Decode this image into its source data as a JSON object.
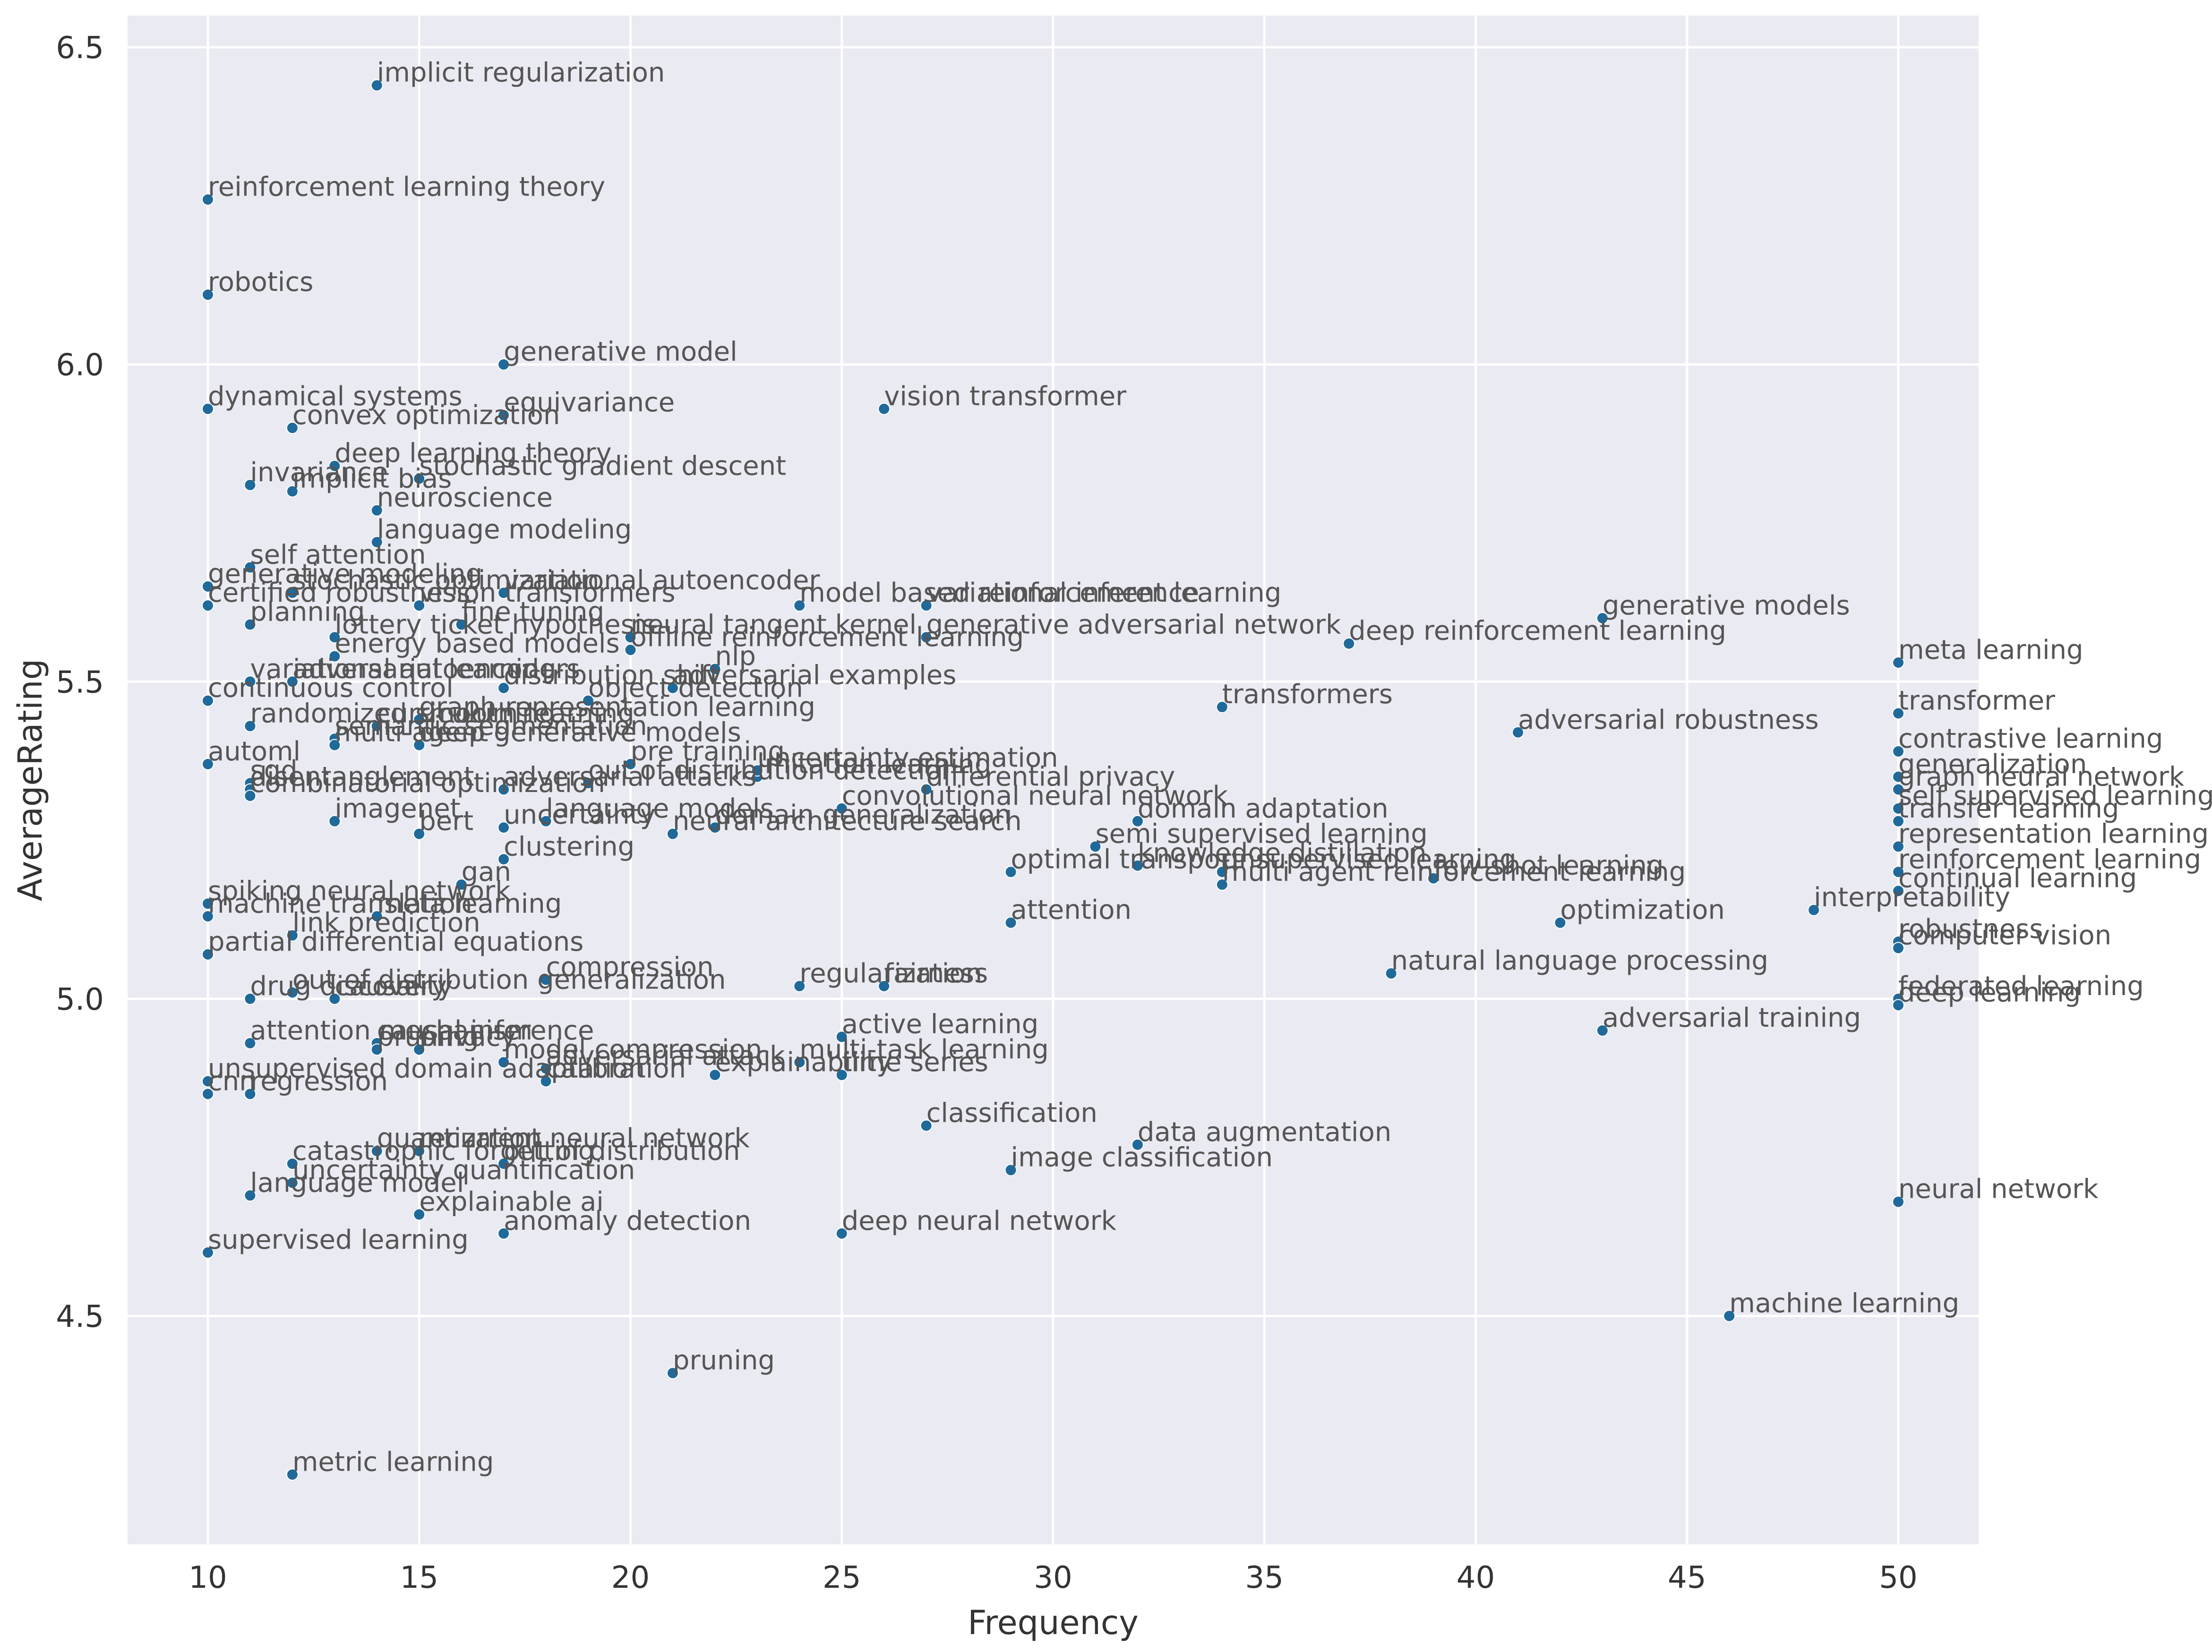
{
  "chart_data": {
    "type": "scatter",
    "xlabel": "Frequency",
    "ylabel": "AverageRating",
    "xlim": [
      8.1,
      51.9
    ],
    "ylim": [
      4.14,
      6.55
    ],
    "x_ticks": [
      10,
      15,
      20,
      25,
      30,
      35,
      40,
      45,
      50
    ],
    "y_ticks": [
      4.5,
      5.0,
      5.5,
      6.0,
      6.5
    ],
    "grid": true,
    "style": {
      "background": "#EAEAF2",
      "grid": "#FFFFFF",
      "point": "#1F6A9A",
      "label": "#555555",
      "tick": "#333333"
    },
    "points": [
      {
        "label": "implicit regularization",
        "x": 14,
        "y": 6.44
      },
      {
        "label": "reinforcement learning theory",
        "x": 10,
        "y": 6.26
      },
      {
        "label": "robotics",
        "x": 10,
        "y": 6.11
      },
      {
        "label": "generative model",
        "x": 17,
        "y": 6.0
      },
      {
        "label": "dynamical systems",
        "x": 10,
        "y": 5.93
      },
      {
        "label": "vision transformer",
        "x": 26,
        "y": 5.93
      },
      {
        "label": "convex optimization",
        "x": 12,
        "y": 5.9
      },
      {
        "label": "equivariance",
        "x": 17,
        "y": 5.92
      },
      {
        "label": "deep learning theory",
        "x": 13,
        "y": 5.84
      },
      {
        "label": "invariance",
        "x": 11,
        "y": 5.81
      },
      {
        "label": "implicit bias",
        "x": 12,
        "y": 5.8
      },
      {
        "label": "stochastic gradient descent",
        "x": 15,
        "y": 5.82
      },
      {
        "label": "neuroscience",
        "x": 14,
        "y": 5.77
      },
      {
        "label": "language modeling",
        "x": 14,
        "y": 5.72
      },
      {
        "label": "self attention",
        "x": 11,
        "y": 5.68
      },
      {
        "label": "generative modeling",
        "x": 10,
        "y": 5.65
      },
      {
        "label": "stochastic optimization",
        "x": 12,
        "y": 5.64
      },
      {
        "label": "variational autoencoder",
        "x": 17,
        "y": 5.64
      },
      {
        "label": "certified robustness",
        "x": 10,
        "y": 5.62
      },
      {
        "label": "vision transformers",
        "x": 15,
        "y": 5.62
      },
      {
        "label": "model based reinforcement learning",
        "x": 24,
        "y": 5.62
      },
      {
        "label": "variational inference",
        "x": 27,
        "y": 5.62
      },
      {
        "label": "generative models",
        "x": 43,
        "y": 5.6
      },
      {
        "label": "planning",
        "x": 11,
        "y": 5.59
      },
      {
        "label": "fine tuning",
        "x": 16,
        "y": 5.59
      },
      {
        "label": "lottery ticket hypothesis",
        "x": 13,
        "y": 5.57
      },
      {
        "label": "neural tangent kernel",
        "x": 20,
        "y": 5.57
      },
      {
        "label": "generative adversarial network",
        "x": 27,
        "y": 5.57
      },
      {
        "label": "deep reinforcement learning",
        "x": 37,
        "y": 5.56
      },
      {
        "label": "offline reinforcement learning",
        "x": 20,
        "y": 5.55
      },
      {
        "label": "energy based models",
        "x": 13,
        "y": 5.54
      },
      {
        "label": "meta learning",
        "x": 50,
        "y": 5.53
      },
      {
        "label": "nlp",
        "x": 22,
        "y": 5.52
      },
      {
        "label": "variational autoencoders",
        "x": 11,
        "y": 5.5
      },
      {
        "label": "adversarial learning",
        "x": 12,
        "y": 5.5
      },
      {
        "label": "distribution shift",
        "x": 17,
        "y": 5.49
      },
      {
        "label": "adversarial examples",
        "x": 21,
        "y": 5.49
      },
      {
        "label": "continuous control",
        "x": 10,
        "y": 5.47
      },
      {
        "label": "object detection",
        "x": 19,
        "y": 5.47
      },
      {
        "label": "transformers",
        "x": 34,
        "y": 5.46
      },
      {
        "label": "transformer",
        "x": 50,
        "y": 5.45
      },
      {
        "label": "graph representation learning",
        "x": 15,
        "y": 5.44
      },
      {
        "label": "randomized smoothing",
        "x": 11,
        "y": 5.43
      },
      {
        "label": "curriculum learning",
        "x": 14,
        "y": 5.43
      },
      {
        "label": "adversarial robustness",
        "x": 41,
        "y": 5.42
      },
      {
        "label": "semantic segmentation",
        "x": 13,
        "y": 5.41
      },
      {
        "label": "multi-agent",
        "x": 13,
        "y": 5.4
      },
      {
        "label": "deep generative models",
        "x": 15,
        "y": 5.4
      },
      {
        "label": "contrastive learning",
        "x": 50,
        "y": 5.39
      },
      {
        "label": "automl",
        "x": 10,
        "y": 5.37
      },
      {
        "label": "pre training",
        "x": 20,
        "y": 5.37
      },
      {
        "label": "imitation learning",
        "x": 23,
        "y": 5.35
      },
      {
        "label": "uncertainty estimation",
        "x": 23,
        "y": 5.36
      },
      {
        "label": "sgd",
        "x": 11,
        "y": 5.34
      },
      {
        "label": "disentanglement",
        "x": 11,
        "y": 5.33
      },
      {
        "label": "out of distribution detection",
        "x": 19,
        "y": 5.34
      },
      {
        "label": "generalization",
        "x": 50,
        "y": 5.35
      },
      {
        "label": "graph neural network",
        "x": 50,
        "y": 5.33
      },
      {
        "label": "combinatorial optimization",
        "x": 11,
        "y": 5.32
      },
      {
        "label": "adversarial attacks",
        "x": 17,
        "y": 5.33
      },
      {
        "label": "differential privacy",
        "x": 27,
        "y": 5.33
      },
      {
        "label": "self supervised learning",
        "x": 50,
        "y": 5.3
      },
      {
        "label": "convolutional neural network",
        "x": 25,
        "y": 5.3
      },
      {
        "label": "imagenet",
        "x": 13,
        "y": 5.28
      },
      {
        "label": "uncertainty",
        "x": 17,
        "y": 5.27
      },
      {
        "label": "language models",
        "x": 18,
        "y": 5.28
      },
      {
        "label": "domain generalization",
        "x": 22,
        "y": 5.27
      },
      {
        "label": "domain adaptation",
        "x": 32,
        "y": 5.28
      },
      {
        "label": "transfer learning",
        "x": 50,
        "y": 5.28
      },
      {
        "label": "bert",
        "x": 15,
        "y": 5.26
      },
      {
        "label": "neural architecture search",
        "x": 21,
        "y": 5.26
      },
      {
        "label": "semi supervised learning",
        "x": 31,
        "y": 5.24
      },
      {
        "label": "representation learning",
        "x": 50,
        "y": 5.24
      },
      {
        "label": "clustering",
        "x": 17,
        "y": 5.22
      },
      {
        "label": "knowledge distillation",
        "x": 32,
        "y": 5.21
      },
      {
        "label": "optimal transport",
        "x": 29,
        "y": 5.2
      },
      {
        "label": "unsupervised learning",
        "x": 34,
        "y": 5.2
      },
      {
        "label": "few-shot learning",
        "x": 39,
        "y": 5.19
      },
      {
        "label": "reinforcement learning",
        "x": 50,
        "y": 5.2
      },
      {
        "label": "multi agent reinforcement learning",
        "x": 34,
        "y": 5.18
      },
      {
        "label": "continual learning",
        "x": 50,
        "y": 5.17
      },
      {
        "label": "gan",
        "x": 16,
        "y": 5.18
      },
      {
        "label": "spiking neural network",
        "x": 10,
        "y": 5.15
      },
      {
        "label": "interpretability",
        "x": 48,
        "y": 5.14
      },
      {
        "label": "machine translation",
        "x": 10,
        "y": 5.13
      },
      {
        "label": "meta learning",
        "x": 14,
        "y": 5.13
      },
      {
        "label": "attention",
        "x": 29,
        "y": 5.12
      },
      {
        "label": "optimization",
        "x": 42,
        "y": 5.12
      },
      {
        "label": "link prediction",
        "x": 12,
        "y": 5.1
      },
      {
        "label": "robustness",
        "x": 50,
        "y": 5.09
      },
      {
        "label": "computer vision",
        "x": 50,
        "y": 5.08
      },
      {
        "label": "partial differential equations",
        "x": 10,
        "y": 5.07
      },
      {
        "label": "natural language processing",
        "x": 38,
        "y": 5.04
      },
      {
        "label": "compression",
        "x": 18,
        "y": 5.03
      },
      {
        "label": "out of distribution generalization",
        "x": 12,
        "y": 5.01
      },
      {
        "label": "regularization",
        "x": 24,
        "y": 5.02
      },
      {
        "label": "fairness",
        "x": 26,
        "y": 5.02
      },
      {
        "label": "drug discovery",
        "x": 11,
        "y": 5.0
      },
      {
        "label": "causality",
        "x": 13,
        "y": 5.0
      },
      {
        "label": "federated learning",
        "x": 50,
        "y": 5.0
      },
      {
        "label": "deep learning",
        "x": 50,
        "y": 4.99
      },
      {
        "label": "adversarial training",
        "x": 43,
        "y": 4.95
      },
      {
        "label": "active learning",
        "x": 25,
        "y": 4.94
      },
      {
        "label": "attention mechanism",
        "x": 11,
        "y": 4.93
      },
      {
        "label": "causal inference",
        "x": 14,
        "y": 4.93
      },
      {
        "label": "pruning",
        "x": 14,
        "y": 4.92
      },
      {
        "label": "privacy",
        "x": 15,
        "y": 4.92
      },
      {
        "label": "model compression",
        "x": 17,
        "y": 4.9
      },
      {
        "label": "multi-task learning",
        "x": 24,
        "y": 4.9
      },
      {
        "label": "explainability",
        "x": 22,
        "y": 4.88
      },
      {
        "label": "time series",
        "x": 25,
        "y": 4.88
      },
      {
        "label": "adversarial attack",
        "x": 18,
        "y": 4.89
      },
      {
        "label": "unsupervised domain adaptation",
        "x": 10,
        "y": 4.87
      },
      {
        "label": "calibration",
        "x": 18,
        "y": 4.87
      },
      {
        "label": "cnn",
        "x": 10,
        "y": 4.85
      },
      {
        "label": "regression",
        "x": 11,
        "y": 4.85
      },
      {
        "label": "classification",
        "x": 27,
        "y": 4.8
      },
      {
        "label": "data augmentation",
        "x": 32,
        "y": 4.77
      },
      {
        "label": "quantization",
        "x": 14,
        "y": 4.76
      },
      {
        "label": "recurrent neural network",
        "x": 15,
        "y": 4.76
      },
      {
        "label": "catastrophic forgetting",
        "x": 12,
        "y": 4.74
      },
      {
        "label": "out of distribution",
        "x": 17,
        "y": 4.74
      },
      {
        "label": "uncertainty quantification",
        "x": 12,
        "y": 4.71
      },
      {
        "label": "image classification",
        "x": 29,
        "y": 4.73
      },
      {
        "label": "language model",
        "x": 11,
        "y": 4.69
      },
      {
        "label": "neural network",
        "x": 50,
        "y": 4.68
      },
      {
        "label": "explainable ai",
        "x": 15,
        "y": 4.66
      },
      {
        "label": "anomaly detection",
        "x": 17,
        "y": 4.63
      },
      {
        "label": "deep neural network",
        "x": 25,
        "y": 4.63
      },
      {
        "label": "supervised learning",
        "x": 10,
        "y": 4.6
      },
      {
        "label": "machine learning",
        "x": 46,
        "y": 4.5
      },
      {
        "label": "pruning",
        "x": 21,
        "y": 4.41
      },
      {
        "label": "metric learning",
        "x": 12,
        "y": 4.25
      }
    ]
  }
}
